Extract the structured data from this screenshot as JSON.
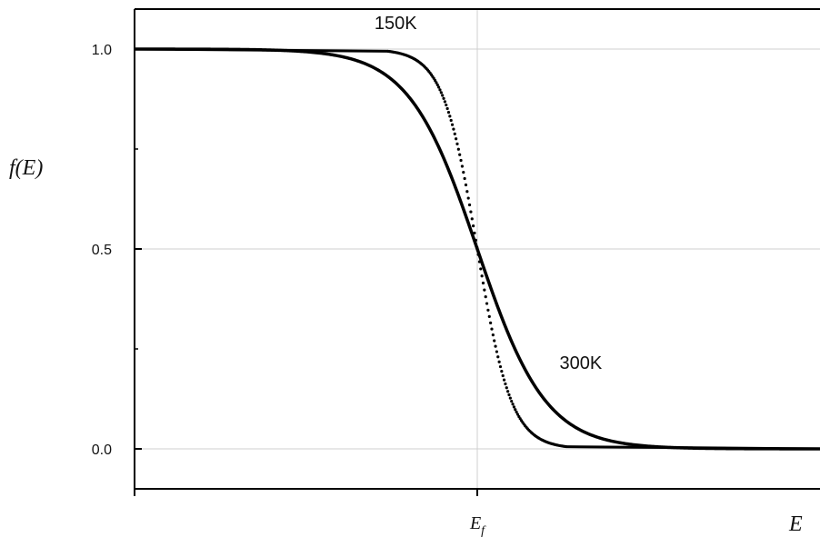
{
  "chart_data": {
    "type": "line",
    "xlabel": "E",
    "ylabel": "f(E)",
    "xlim": [
      -10,
      10
    ],
    "ylim": [
      -0.1,
      1.1
    ],
    "grid": true,
    "y_ticks": [
      {
        "value": 0.0,
        "label": "0.0"
      },
      {
        "value": 0.5,
        "label": "0.5"
      },
      {
        "value": 1.0,
        "label": "1.0"
      }
    ],
    "x_ticks": [
      {
        "value": 0,
        "label": "E",
        "subscript": "f"
      }
    ],
    "series": [
      {
        "name": "150K",
        "style": "dotted",
        "x": [
          -10,
          -4,
          -3,
          -2.5,
          -2,
          -1.5,
          -1,
          -0.5,
          0,
          0.5,
          1,
          1.5,
          2,
          2.5,
          3,
          4,
          10
        ],
        "y": [
          1.0,
          1.0,
          0.998,
          0.993,
          0.982,
          0.953,
          0.881,
          0.731,
          0.5,
          0.269,
          0.119,
          0.047,
          0.018,
          0.007,
          0.002,
          0.0,
          0.0
        ]
      },
      {
        "name": "300K",
        "style": "solid",
        "x": [
          -10,
          -6,
          -5,
          -4,
          -3,
          -2.5,
          -2,
          -1.5,
          -1,
          -0.5,
          0,
          0.5,
          1,
          1.5,
          2,
          2.5,
          3,
          4,
          5,
          6,
          10
        ],
        "y": [
          1.0,
          0.998,
          0.993,
          0.982,
          0.953,
          0.924,
          0.881,
          0.818,
          0.731,
          0.622,
          0.5,
          0.378,
          0.269,
          0.182,
          0.119,
          0.076,
          0.047,
          0.018,
          0.007,
          0.002,
          0.0
        ]
      }
    ],
    "annotations": [
      {
        "text": "150K",
        "x": -3.0,
        "y": 1.05
      },
      {
        "text": "300K",
        "x": 2.4,
        "y": 0.2
      }
    ]
  }
}
